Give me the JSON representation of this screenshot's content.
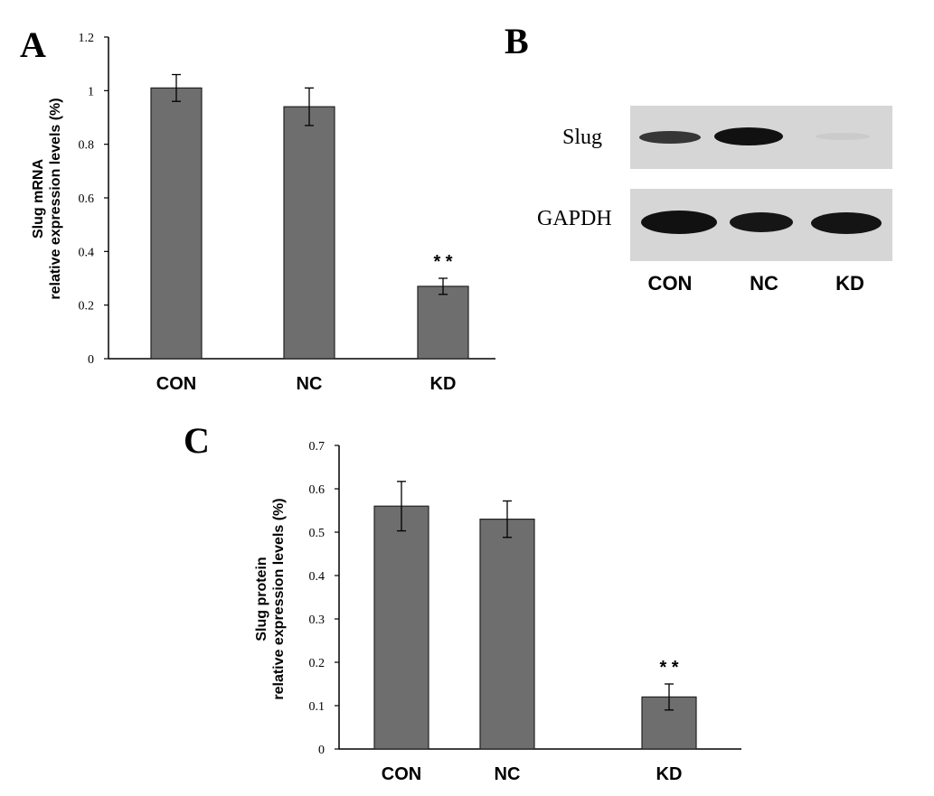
{
  "panels": {
    "A": "A",
    "B": "B",
    "C": "C"
  },
  "colors": {
    "bar_fill": "#6e6e6e",
    "bar_stroke": "#222222",
    "axis": "#000000",
    "blot_background": "#d4d4d4",
    "band": "#1a1a1a"
  },
  "chart_data": [
    {
      "panel": "A",
      "type": "bar",
      "categories": [
        "CON",
        "NC",
        "KD"
      ],
      "values": [
        1.01,
        0.94,
        0.27
      ],
      "errors": [
        0.05,
        0.07,
        0.03
      ],
      "annotations": [
        "",
        "",
        "* *"
      ],
      "ylabel_line1": "Slug mRNA",
      "ylabel_line2": "relative expression levels (%)",
      "ylim": [
        0,
        1.2
      ],
      "yticks": [
        0,
        0.2,
        0.4,
        0.6,
        0.8,
        1,
        1.2
      ],
      "ytick_labels": [
        "0",
        "0.2",
        "0.4",
        "0.6",
        "0.8",
        "1",
        "1.2"
      ],
      "grid": false
    },
    {
      "panel": "C",
      "type": "bar",
      "categories": [
        "CON",
        "NC",
        "KD"
      ],
      "values": [
        0.56,
        0.53,
        0.12
      ],
      "errors": [
        0.057,
        0.042,
        0.03
      ],
      "annotations": [
        "",
        "",
        "* *"
      ],
      "ylabel_line1": "Slug protein",
      "ylabel_line2": "relative expression levels (%)",
      "ylim": [
        0,
        0.7
      ],
      "yticks": [
        0,
        0.1,
        0.2,
        0.3,
        0.4,
        0.5,
        0.6,
        0.7
      ],
      "ytick_labels": [
        "0",
        "0.1",
        "0.2",
        "0.3",
        "0.4",
        "0.5",
        "0.6",
        "0.7"
      ],
      "grid": false
    }
  ],
  "western_blot": {
    "rows": [
      {
        "label": "Slug",
        "band_intensity": [
          0.75,
          1.0,
          0.03
        ]
      },
      {
        "label": "GAPDH",
        "band_intensity": [
          1.0,
          0.9,
          0.95
        ]
      }
    ],
    "lanes": [
      "CON",
      "NC",
      "KD"
    ]
  }
}
